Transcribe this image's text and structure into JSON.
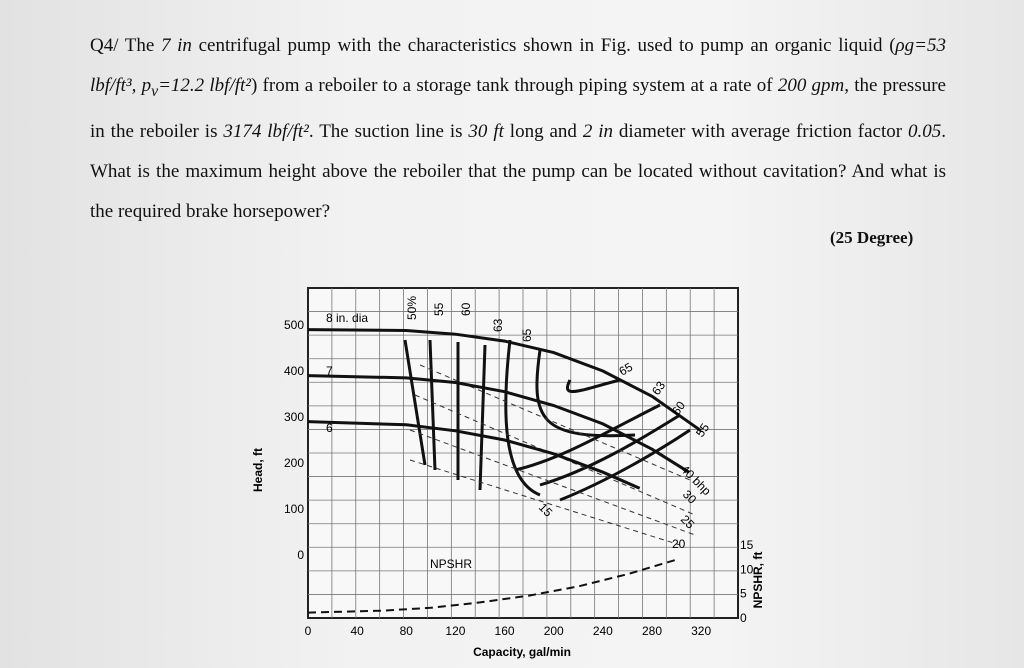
{
  "problem": {
    "q_label": "Q4/",
    "text_1": " The ",
    "pump_size": "7 in",
    "text_2": " centrifugal pump with the characteristics shown in Fig. used to pump an organic liquid (",
    "density": "ρg=53 lbf/ft³, p",
    "pv_sub": "v",
    "vapor": "=12.2 lbf/ft²",
    "text_3": ") from a reboiler to a storage tank through piping system at a rate of ",
    "flow": "200 gpm",
    "text_4": ", the pressure in the reboiler is ",
    "pressure": "3174 lbf/ft²",
    "text_5": ". The suction line is ",
    "length": "30 ft",
    "text_6": " long and ",
    "diameter": "2 in",
    "text_7": " diameter with average friction factor ",
    "friction": "0.05",
    "text_8": ". What is the maximum height above the reboiler that the pump can be located without cavitation? And what is the required brake horsepower?",
    "credit": "(25 Degree)"
  },
  "figure": {
    "ylabel": "Head, ft",
    "xlabel": "Capacity, gal/min",
    "y2label": "NPSHR, ft",
    "x_ticks": [
      "0",
      "40",
      "80",
      "120",
      "160",
      "200",
      "240",
      "280",
      "320"
    ],
    "y_ticks": [
      "500",
      "400",
      "300",
      "200",
      "100",
      "0"
    ],
    "y2_ticks": [
      "15",
      "10",
      "5",
      "0"
    ],
    "impeller_labels": [
      "8 in. dia",
      "7",
      "6"
    ],
    "efficiency_labels": [
      "50%",
      "55",
      "60",
      "63",
      "65",
      "65",
      "63",
      "60",
      "55"
    ],
    "bhp_labels": [
      "40 bhp",
      "30",
      "25",
      "20",
      "15"
    ],
    "npsh_label": "NPSHR"
  },
  "chart_data": {
    "type": "line",
    "x_name": "Capacity, gal/min",
    "y_name": "Head, ft",
    "xlim": [
      0,
      350
    ],
    "ylim": [
      0,
      500
    ],
    "y2lim": [
      0,
      15
    ],
    "series": [
      {
        "name": "8 in. dia",
        "x": [
          0,
          80,
          120,
          160,
          200,
          240,
          280,
          320
        ],
        "y": [
          490,
          488,
          480,
          465,
          440,
          400,
          345,
          270
        ]
      },
      {
        "name": "7",
        "x": [
          0,
          80,
          120,
          160,
          200,
          240,
          280,
          310
        ],
        "y": [
          390,
          385,
          375,
          355,
          325,
          285,
          230,
          180
        ]
      },
      {
        "name": "6",
        "x": [
          0,
          80,
          120,
          160,
          200,
          240,
          270
        ],
        "y": [
          290,
          283,
          270,
          250,
          220,
          180,
          145
        ]
      },
      {
        "name": "NPSHR",
        "x": [
          0,
          60,
          100,
          140,
          180,
          220,
          260,
          300
        ],
        "y": [
          1.1,
          1.5,
          2.1,
          3.2,
          4.6,
          6.5,
          9.0,
          12.0
        ]
      }
    ],
    "grid": true
  }
}
